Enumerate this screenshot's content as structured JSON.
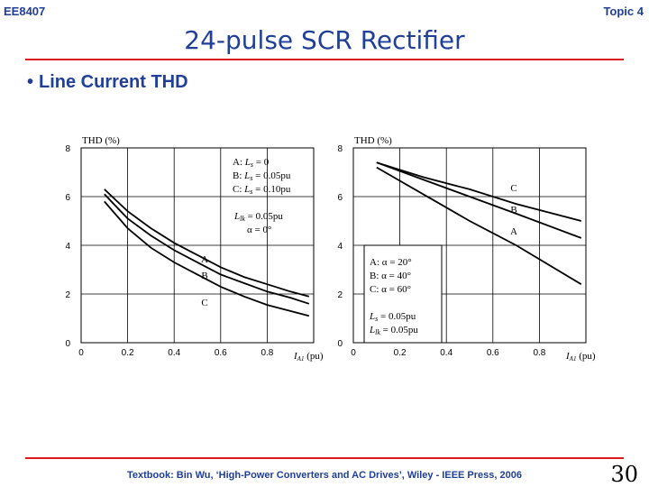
{
  "header": {
    "course": "EE8407",
    "topic": "Topic 4"
  },
  "title": "24-pulse SCR Rectifier",
  "bullet": "Line Current THD",
  "footer": {
    "citation": "Textbook: Bin Wu, ‘High-Power Converters and AC Drives’, Wiley - IEEE Press, 2006",
    "page": "30"
  },
  "chart_data": [
    {
      "type": "line",
      "ylabel": "THD (%)",
      "xlabel": "I",
      "xlabel_sub": "A1",
      "xunit": "(pu)",
      "xlim": [
        0,
        1.0
      ],
      "ylim": [
        0,
        8
      ],
      "xticks": [
        "0",
        "0.2",
        "0.4",
        "0.6",
        "0.8"
      ],
      "yticks": [
        "0",
        "2",
        "4",
        "6",
        "8"
      ],
      "series": [
        {
          "name": "A",
          "x": [
            0.1,
            0.2,
            0.3,
            0.4,
            0.5,
            0.6,
            0.7,
            0.8,
            0.9,
            0.98
          ],
          "y": [
            6.3,
            5.4,
            4.7,
            4.1,
            3.6,
            3.1,
            2.7,
            2.4,
            2.1,
            1.9
          ]
        },
        {
          "name": "B",
          "x": [
            0.1,
            0.2,
            0.3,
            0.4,
            0.5,
            0.6,
            0.7,
            0.8,
            0.9,
            0.98
          ],
          "y": [
            6.1,
            5.1,
            4.4,
            3.8,
            3.3,
            2.8,
            2.45,
            2.1,
            1.85,
            1.6
          ]
        },
        {
          "name": "C",
          "x": [
            0.1,
            0.2,
            0.3,
            0.4,
            0.5,
            0.6,
            0.7,
            0.8,
            0.9,
            0.98
          ],
          "y": [
            5.8,
            4.7,
            3.9,
            3.3,
            2.8,
            2.3,
            1.9,
            1.55,
            1.3,
            1.1
          ]
        }
      ],
      "curve_labels": [
        "A",
        "B",
        "C"
      ],
      "legend": {
        "A": "A: L_s = 0",
        "B": "B: L_s = 0.05pu",
        "C": "C: L_s = 0.10pu",
        "note1": "L_lk = 0.05pu",
        "note2": "α = 0°"
      }
    },
    {
      "type": "line",
      "ylabel": "THD (%)",
      "xlabel": "I",
      "xlabel_sub": "A1",
      "xunit": "(pu)",
      "xlim": [
        0,
        1.0
      ],
      "ylim": [
        0,
        8
      ],
      "xticks": [
        "0",
        "0.2",
        "0.4",
        "0.6",
        "0.8"
      ],
      "yticks": [
        "0",
        "2",
        "4",
        "6",
        "8"
      ],
      "series": [
        {
          "name": "A",
          "x": [
            0.1,
            0.3,
            0.5,
            0.7,
            0.98
          ],
          "y": [
            7.2,
            6.1,
            5.0,
            4.0,
            2.4
          ]
        },
        {
          "name": "B",
          "x": [
            0.1,
            0.3,
            0.5,
            0.7,
            0.98
          ],
          "y": [
            7.4,
            6.7,
            6.0,
            5.3,
            4.3
          ]
        },
        {
          "name": "C",
          "x": [
            0.1,
            0.3,
            0.5,
            0.7,
            0.98
          ],
          "y": [
            7.4,
            6.8,
            6.3,
            5.7,
            5.0
          ]
        }
      ],
      "curve_labels": [
        "C",
        "B",
        "A"
      ],
      "legend": {
        "A": "A: α = 20°",
        "B": "B: α = 40°",
        "C": "C: α = 60°",
        "note1": "L_s = 0.05pu",
        "note2": "L_lk = 0.05pu"
      }
    }
  ]
}
